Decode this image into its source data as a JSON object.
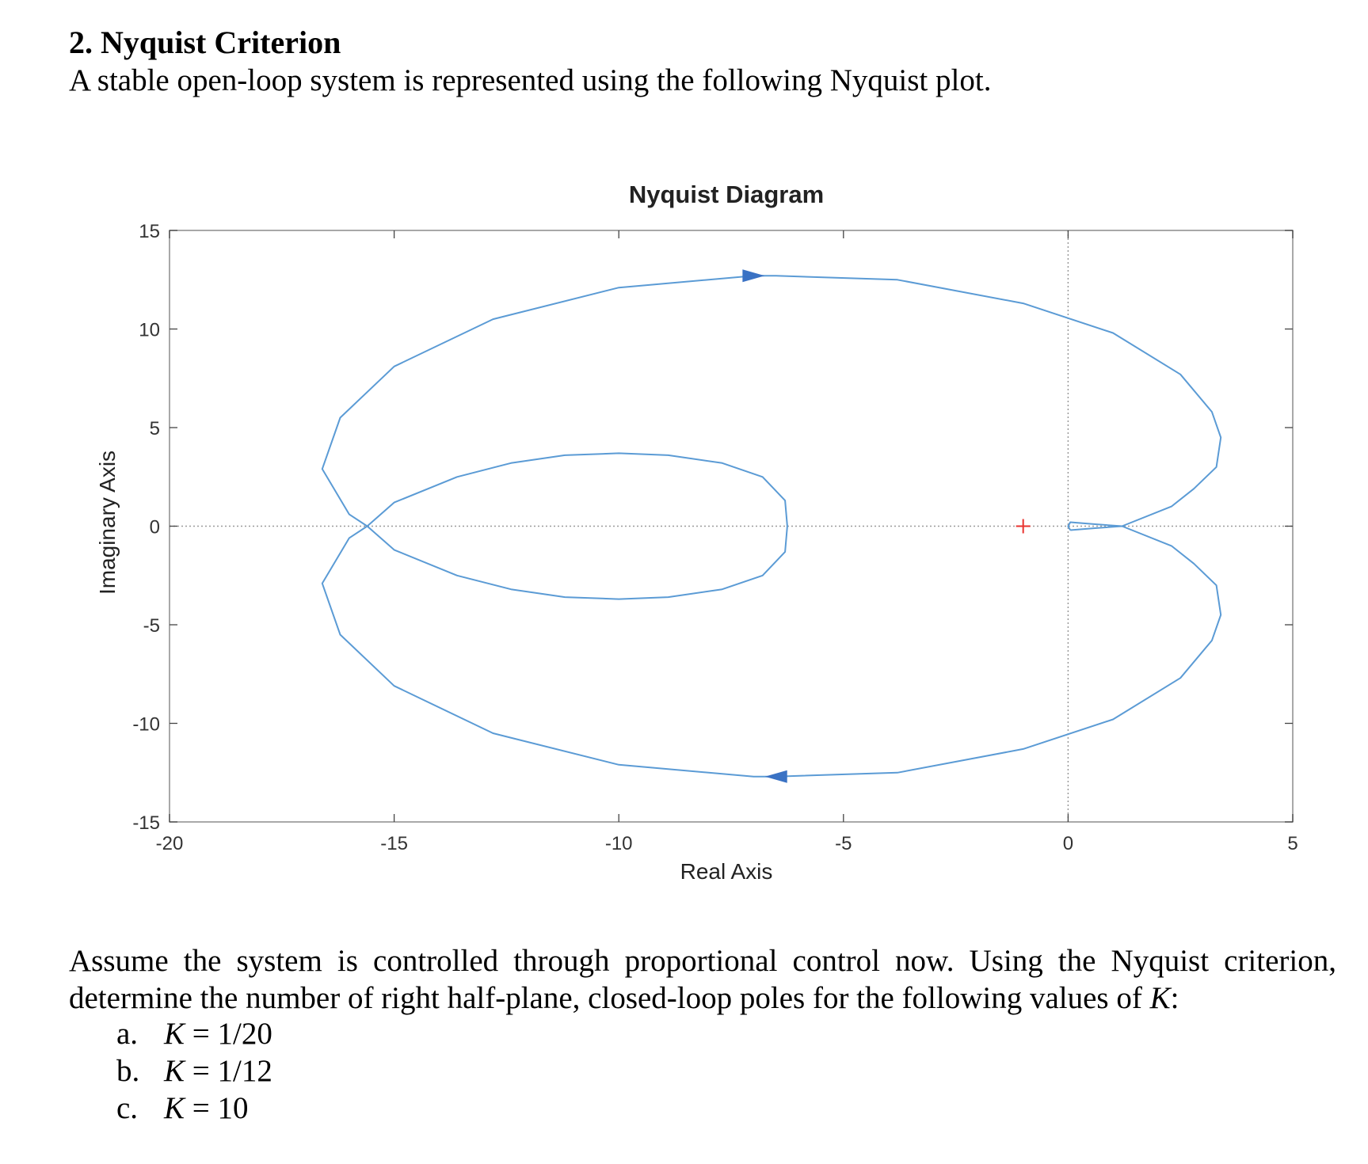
{
  "problem": {
    "heading": "2. Nyquist Criterion",
    "intro": "A stable open-loop system is represented using the following Nyquist plot.",
    "question_text": "Assume the system is controlled through proportional control now. Using the Nyquist criterion, determine the number of right half-plane, closed-loop poles for the following values of ",
    "question_symbol": "K",
    "question_suffix": ":",
    "options": [
      {
        "letter": "a.",
        "symbol": "K",
        "relation": "=",
        "value": "1/20"
      },
      {
        "letter": "b.",
        "symbol": "K",
        "relation": "=",
        "value": "1/12"
      },
      {
        "letter": "c.",
        "symbol": "K",
        "relation": "=",
        "value": "10"
      }
    ]
  },
  "chart_data": {
    "type": "line",
    "title": "Nyquist Diagram",
    "xlabel": "Real Axis",
    "ylabel": "Imaginary Axis",
    "xlim": [
      -20,
      5
    ],
    "ylim": [
      -15,
      15
    ],
    "xticks": [
      "-20",
      "-15",
      "-10",
      "-5",
      "0",
      "5"
    ],
    "yticks": [
      "15",
      "10",
      "5",
      "0",
      "-5",
      "-10",
      "-15"
    ],
    "xtick_values": [
      -20,
      -15,
      -10,
      -5,
      0,
      5
    ],
    "ytick_values": [
      15,
      10,
      5,
      0,
      -5,
      -10,
      -15
    ],
    "dotted_reference_lines": {
      "x": 0,
      "y": 0
    },
    "critical_point": {
      "x": -1,
      "y": 0,
      "marker": "+",
      "color": "#e8322e"
    },
    "line_color": "#5b9bd5",
    "arrow_color": "#3a72c4",
    "curve": {
      "x": [
        0.05,
        0.6,
        1.2,
        2.3,
        2.8,
        3.3,
        3.4,
        3.2,
        2.5,
        1.0,
        -1.0,
        -3.8,
        -6.5,
        -7.0,
        -10.0,
        -12.8,
        -15.0,
        -16.2,
        -16.6,
        -16.0,
        -15.6,
        -15.0,
        -13.6,
        -12.4,
        -11.2,
        -10.0,
        -8.9,
        -7.7,
        -6.8,
        -6.3,
        -6.25,
        -6.3,
        -6.8,
        -7.7,
        -8.9,
        -10.0,
        -11.2,
        -12.4,
        -13.6,
        -15.0,
        -15.6,
        -16.0,
        -16.6,
        -16.2,
        -15.0,
        -12.8,
        -10.0,
        -7.0,
        -6.5,
        -3.8,
        -1.0,
        1.0,
        2.5,
        3.2,
        3.4,
        3.3,
        2.8,
        2.3,
        1.2,
        0.6,
        0.05,
        0.0,
        0.05
      ],
      "y": [
        -0.2,
        -0.1,
        0.0,
        1.0,
        1.9,
        3.0,
        4.5,
        5.8,
        7.7,
        9.8,
        11.3,
        12.5,
        12.7,
        12.7,
        12.1,
        10.5,
        8.1,
        5.5,
        2.9,
        0.6,
        0.0,
        -1.2,
        -2.5,
        -3.2,
        -3.6,
        -3.7,
        -3.6,
        -3.2,
        -2.5,
        -1.3,
        0.0,
        1.3,
        2.5,
        3.2,
        3.6,
        3.7,
        3.6,
        3.2,
        2.5,
        1.2,
        0.0,
        -0.6,
        -2.9,
        -5.5,
        -8.1,
        -10.5,
        -12.1,
        -12.7,
        -12.7,
        -12.5,
        -11.3,
        -9.8,
        -7.7,
        -5.8,
        -4.5,
        -3.0,
        -1.9,
        -1.0,
        0.0,
        0.1,
        0.2,
        0.0,
        -0.2
      ]
    },
    "direction_arrows": [
      {
        "x": -7.0,
        "y": 12.7,
        "direction": "right"
      },
      {
        "x": -6.5,
        "y": -12.7,
        "direction": "left"
      }
    ],
    "grid": false,
    "legend": "none"
  }
}
